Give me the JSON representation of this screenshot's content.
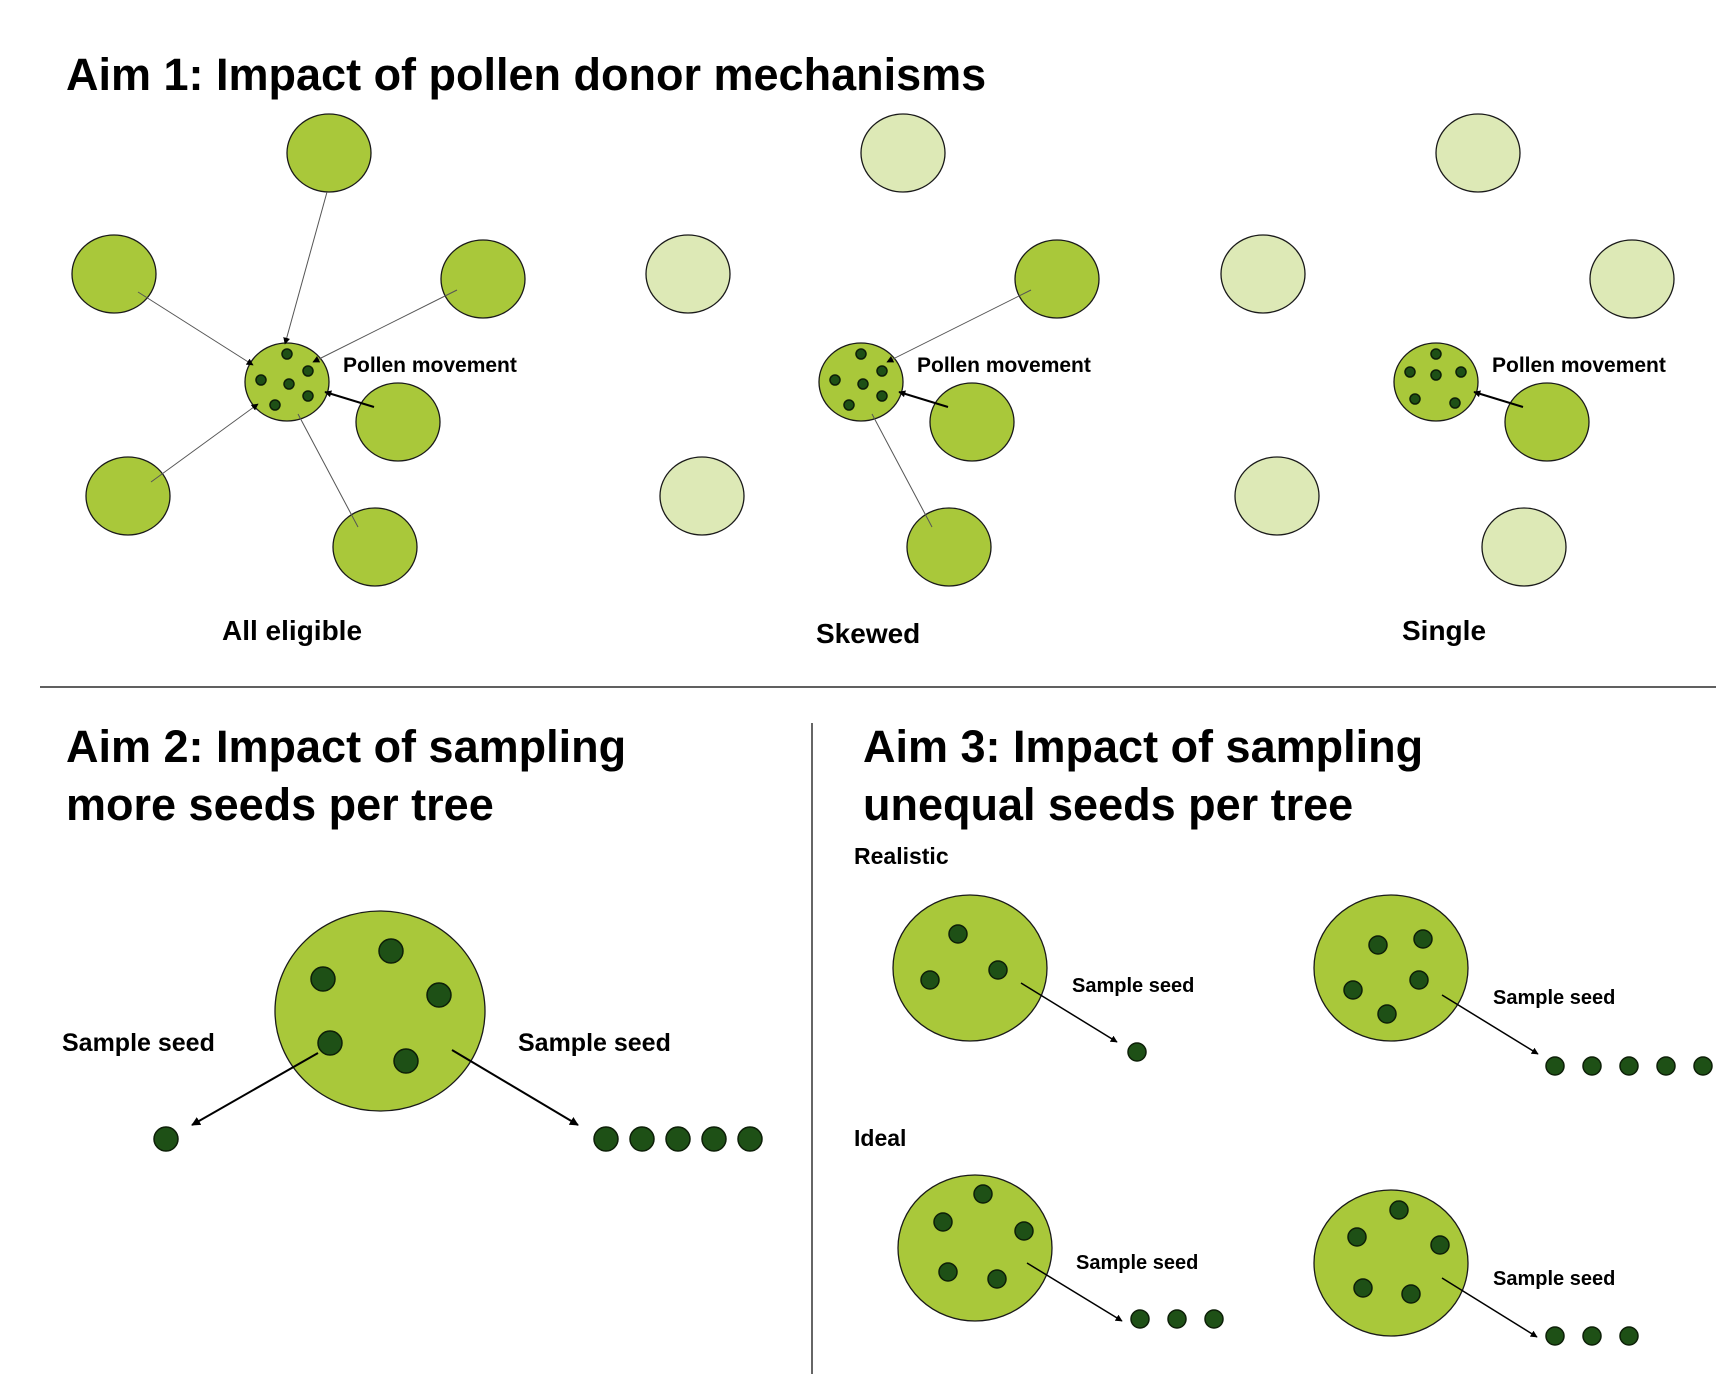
{
  "aim1": {
    "title": "Aim 1: Impact of pollen donor mechanisms",
    "pollen_label": "Pollen movement",
    "panels": [
      {
        "caption": "All eligible"
      },
      {
        "caption": "Skewed"
      },
      {
        "caption": "Single"
      }
    ]
  },
  "aim2": {
    "title_line1": "Aim 2: Impact of sampling",
    "title_line2": "more seeds per tree",
    "sample_left": "Sample seed",
    "sample_right": "Sample seed",
    "left_seed_count": 1,
    "right_seed_count": 5
  },
  "aim3": {
    "title_line1": "Aim 3: Impact of sampling",
    "title_line2": "unequal seeds per tree",
    "realistic_label": "Realistic",
    "ideal_label": "Ideal",
    "sample_label": "Sample seed",
    "realistic_seed_counts": [
      1,
      5
    ],
    "ideal_seed_counts": [
      3,
      3
    ]
  },
  "colors": {
    "tree": "#a9c83a",
    "tree_faded": "#dde9b6",
    "seed": "#1e5016"
  }
}
